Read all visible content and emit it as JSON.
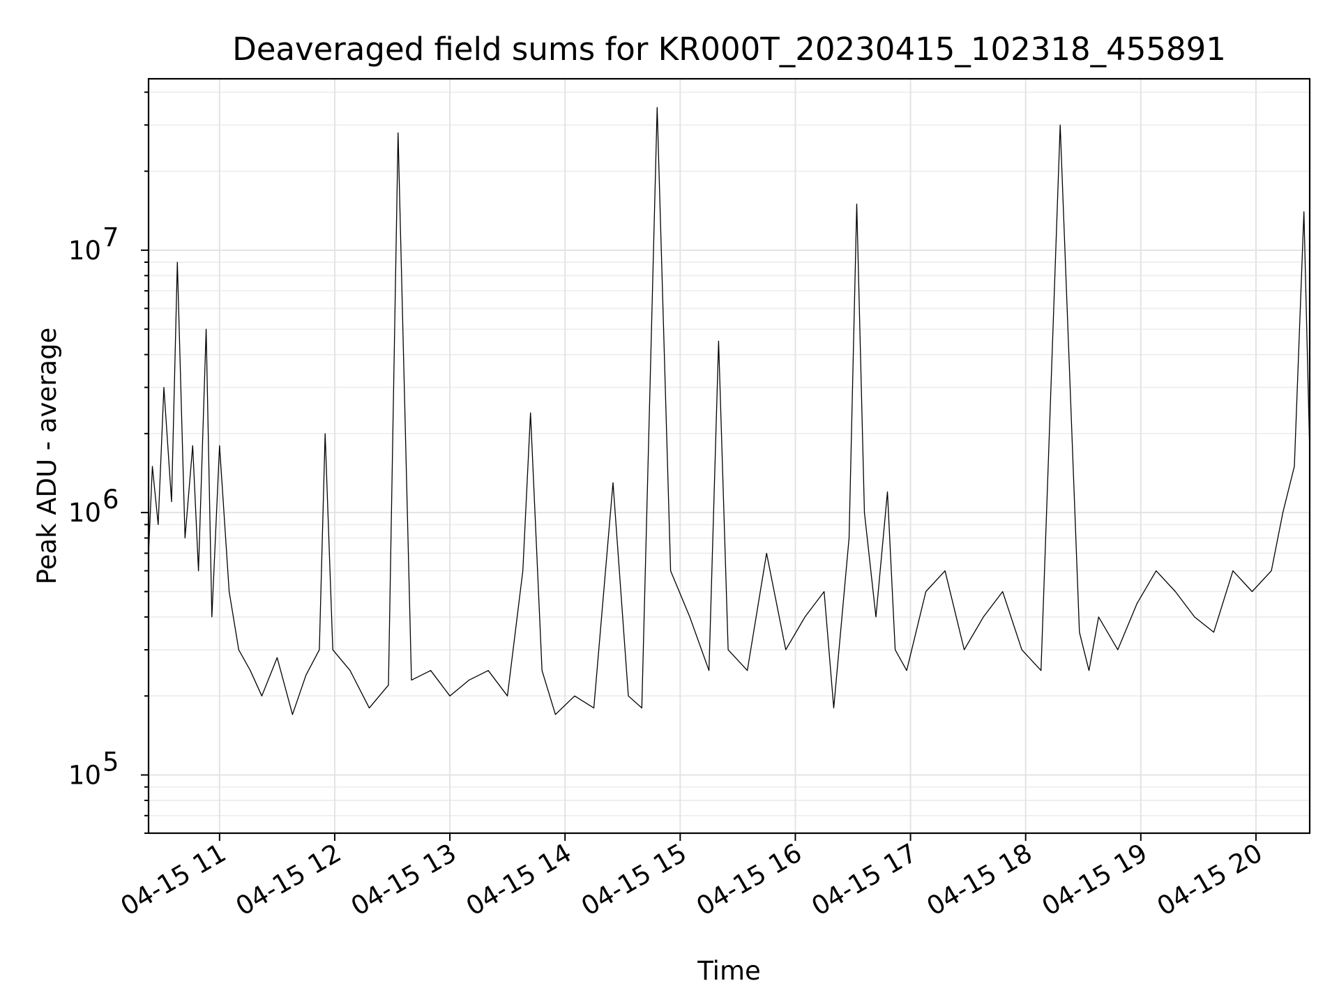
{
  "chart_data": {
    "type": "line",
    "title": "Deaveraged field sums for KR000T_20230415_102318_455891",
    "xlabel": "Time",
    "ylabel": "Peak ADU - average",
    "xscale": "time",
    "yscale": "log",
    "xlim": [
      "2023-04-15 10:23",
      "2023-04-15 20:28"
    ],
    "ylim": [
      60000,
      45000000
    ],
    "x_ticks": [
      "04-15 11",
      "04-15 12",
      "04-15 13",
      "04-15 14",
      "04-15 15",
      "04-15 16",
      "04-15 17",
      "04-15 18",
      "04-15 19",
      "04-15 20"
    ],
    "y_ticks": [
      {
        "value": 100000,
        "base": "10",
        "exp": "5"
      },
      {
        "value": 1000000,
        "base": "10",
        "exp": "6"
      },
      {
        "value": 10000000,
        "base": "10",
        "exp": "7"
      }
    ],
    "grid": true,
    "line_color": "#000000",
    "series": [
      {
        "x": [
          "2023-04-15 10:23",
          "2023-04-15 10:25",
          "2023-04-15 10:28",
          "2023-04-15 10:31",
          "2023-04-15 10:35",
          "2023-04-15 10:38",
          "2023-04-15 10:42",
          "2023-04-15 10:46",
          "2023-04-15 10:49",
          "2023-04-15 10:53",
          "2023-04-15 10:56",
          "2023-04-15 11:00",
          "2023-04-15 11:05",
          "2023-04-15 11:10",
          "2023-04-15 11:16",
          "2023-04-15 11:22",
          "2023-04-15 11:30",
          "2023-04-15 11:38",
          "2023-04-15 11:45",
          "2023-04-15 11:52",
          "2023-04-15 11:55",
          "2023-04-15 11:59",
          "2023-04-15 12:08",
          "2023-04-15 12:18",
          "2023-04-15 12:28",
          "2023-04-15 12:33",
          "2023-04-15 12:40",
          "2023-04-15 12:50",
          "2023-04-15 13:00",
          "2023-04-15 13:10",
          "2023-04-15 13:20",
          "2023-04-15 13:30",
          "2023-04-15 13:38",
          "2023-04-15 13:42",
          "2023-04-15 13:48",
          "2023-04-15 13:55",
          "2023-04-15 14:05",
          "2023-04-15 14:15",
          "2023-04-15 14:25",
          "2023-04-15 14:33",
          "2023-04-15 14:40",
          "2023-04-15 14:48",
          "2023-04-15 14:55",
          "2023-04-15 15:05",
          "2023-04-15 15:15",
          "2023-04-15 15:20",
          "2023-04-15 15:25",
          "2023-04-15 15:35",
          "2023-04-15 15:45",
          "2023-04-15 15:55",
          "2023-04-15 16:05",
          "2023-04-15 16:15",
          "2023-04-15 16:20",
          "2023-04-15 16:28",
          "2023-04-15 16:32",
          "2023-04-15 16:36",
          "2023-04-15 16:42",
          "2023-04-15 16:48",
          "2023-04-15 16:52",
          "2023-04-15 16:58",
          "2023-04-15 17:08",
          "2023-04-15 17:18",
          "2023-04-15 17:28",
          "2023-04-15 17:38",
          "2023-04-15 17:48",
          "2023-04-15 17:58",
          "2023-04-15 18:08",
          "2023-04-15 18:18",
          "2023-04-15 18:28",
          "2023-04-15 18:33",
          "2023-04-15 18:38",
          "2023-04-15 18:48",
          "2023-04-15 18:58",
          "2023-04-15 19:08",
          "2023-04-15 19:18",
          "2023-04-15 19:28",
          "2023-04-15 19:38",
          "2023-04-15 19:48",
          "2023-04-15 19:58",
          "2023-04-15 20:08",
          "2023-04-15 20:14",
          "2023-04-15 20:20",
          "2023-04-15 20:25",
          "2023-04-15 20:28"
        ],
        "y": [
          700000,
          1500000,
          900000,
          3000000,
          1100000,
          9000000,
          800000,
          1800000,
          600000,
          5000000,
          400000,
          1800000,
          500000,
          300000,
          250000,
          200000,
          280000,
          170000,
          240000,
          300000,
          2000000,
          300000,
          250000,
          180000,
          220000,
          28000000,
          230000,
          250000,
          200000,
          230000,
          250000,
          200000,
          600000,
          2400000,
          250000,
          170000,
          200000,
          180000,
          1300000,
          200000,
          180000,
          35000000,
          600000,
          400000,
          250000,
          4500000,
          300000,
          250000,
          700000,
          300000,
          400000,
          500000,
          180000,
          800000,
          15000000,
          1000000,
          400000,
          1200000,
          300000,
          250000,
          500000,
          600000,
          300000,
          400000,
          500000,
          300000,
          250000,
          30000000,
          350000,
          250000,
          400000,
          300000,
          450000,
          600000,
          500000,
          400000,
          350000,
          600000,
          500000,
          600000,
          1000000,
          1500000,
          14000000,
          1700000
        ]
      }
    ]
  }
}
